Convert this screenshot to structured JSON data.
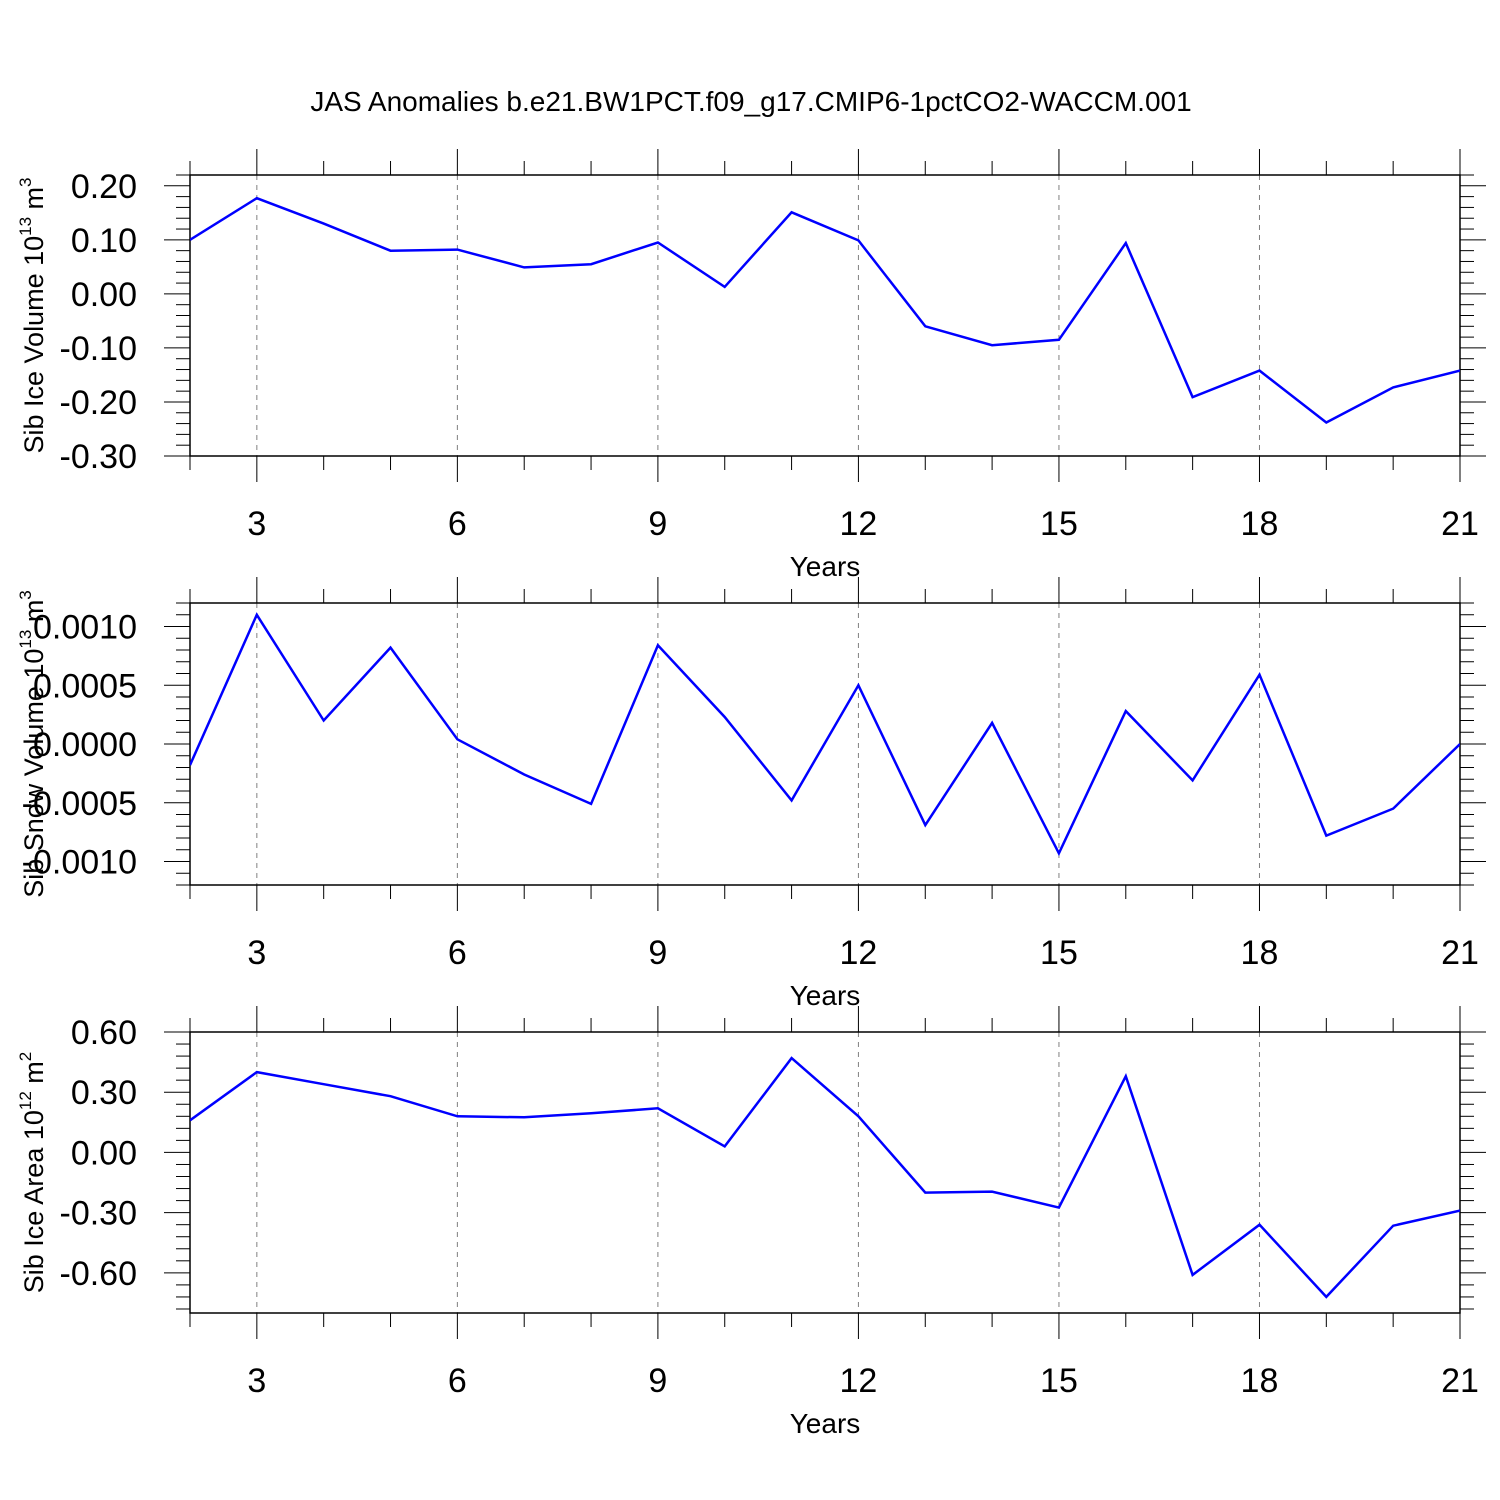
{
  "title": "JAS Anomalies b.e21.BW1PCT.f09_g17.CMIP6-1pctCO2-WACCM.001",
  "colors": {
    "line": "#0000ff",
    "axis": "#000000",
    "grid": "#808080"
  },
  "chart_data": [
    {
      "type": "line",
      "xlabel": "Years",
      "ylabel": {
        "text": "Sib Ice Volume 10",
        "exp": "13",
        "unit": " m",
        "unit_exp": "3"
      },
      "xlim": [
        2,
        21
      ],
      "ylim": [
        -0.3,
        0.22
      ],
      "xticks": [
        3,
        6,
        9,
        12,
        15,
        18,
        21
      ],
      "yticks": [
        0.2,
        0.1,
        0.0,
        -0.1,
        -0.2,
        -0.3
      ],
      "ytick_labels": [
        "0.20",
        "0.10",
        "0.00",
        "-0.10",
        "-0.20",
        "-0.30"
      ],
      "x": [
        2,
        3,
        4,
        5,
        6,
        7,
        8,
        9,
        10,
        11,
        12,
        13,
        14,
        15,
        16,
        17,
        18,
        19,
        20,
        21
      ],
      "values": [
        0.1,
        0.177,
        0.13,
        0.08,
        0.082,
        0.049,
        0.055,
        0.095,
        0.013,
        0.151,
        0.099,
        -0.06,
        -0.095,
        -0.085,
        0.094,
        -0.191,
        -0.142,
        -0.238,
        -0.173,
        -0.142
      ]
    },
    {
      "type": "line",
      "xlabel": "Years",
      "ylabel": {
        "text": "Sib Snow Volume 10",
        "exp": "13",
        "unit": " m",
        "unit_exp": "3"
      },
      "xlim": [
        2,
        21
      ],
      "ylim": [
        -0.0012,
        0.0012
      ],
      "xticks": [
        3,
        6,
        9,
        12,
        15,
        18,
        21
      ],
      "yticks": [
        0.001,
        0.0005,
        0.0,
        -0.0005,
        -0.001
      ],
      "ytick_labels": [
        "0.0010",
        "0.0005",
        "0.0000",
        "-0.0005",
        "-0.0010"
      ],
      "x": [
        2,
        3,
        4,
        5,
        6,
        7,
        8,
        9,
        10,
        11,
        12,
        13,
        14,
        15,
        16,
        17,
        18,
        19,
        20,
        21
      ],
      "values": [
        -0.00018,
        0.0011,
        0.0002,
        0.00082,
        4e-05,
        -0.00026,
        -0.00051,
        0.00084,
        0.00023,
        -0.00048,
        0.0005,
        -0.00069,
        0.00018,
        -0.00093,
        0.00028,
        -0.00031,
        0.00059,
        -0.00078,
        -0.00055,
        0.0
      ]
    },
    {
      "type": "line",
      "xlabel": "Years",
      "ylabel": {
        "text": "Sib Ice Area 10",
        "exp": "12",
        "unit": " m",
        "unit_exp": "2"
      },
      "xlim": [
        2,
        21
      ],
      "ylim": [
        -0.8,
        0.6
      ],
      "xticks": [
        3,
        6,
        9,
        12,
        15,
        18,
        21
      ],
      "yticks": [
        0.6,
        0.3,
        0.0,
        -0.3,
        -0.6
      ],
      "ytick_labels": [
        "0.60",
        "0.30",
        "0.00",
        "-0.30",
        "-0.60"
      ],
      "x": [
        2,
        3,
        4,
        5,
        6,
        7,
        8,
        9,
        10,
        11,
        12,
        13,
        14,
        15,
        16,
        17,
        18,
        19,
        20,
        21
      ],
      "values": [
        0.16,
        0.4,
        0.34,
        0.28,
        0.18,
        0.175,
        0.195,
        0.22,
        0.03,
        0.47,
        0.18,
        -0.2,
        -0.195,
        -0.275,
        0.38,
        -0.61,
        -0.36,
        -0.72,
        -0.365,
        -0.29
      ]
    }
  ]
}
